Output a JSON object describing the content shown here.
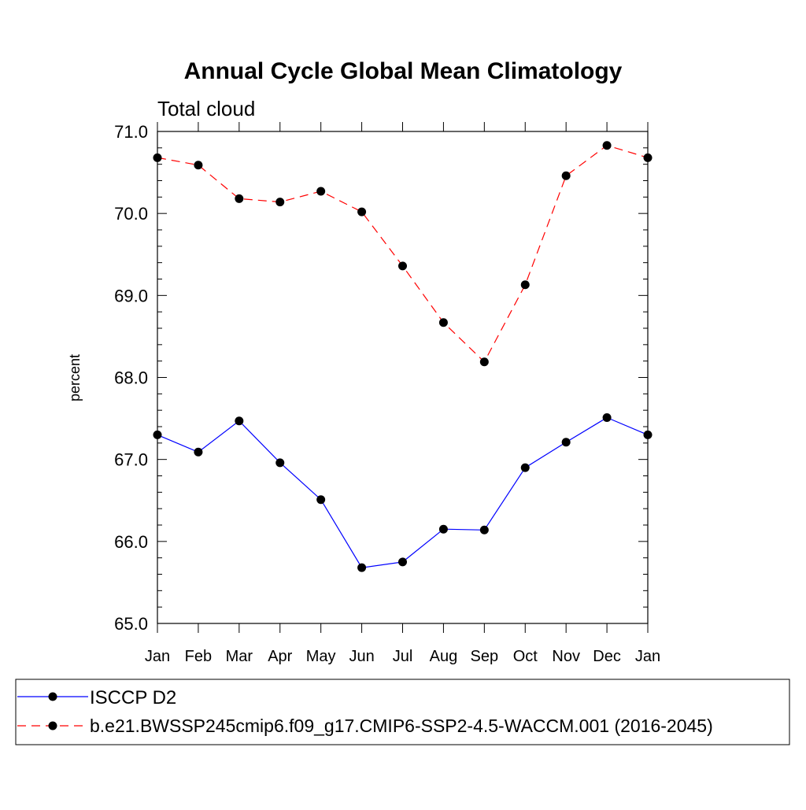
{
  "chart_data": {
    "type": "line",
    "title": "Annual Cycle Global Mean Climatology",
    "subtitle": "Total cloud",
    "xlabel": "",
    "ylabel": "percent",
    "categories": [
      "Jan",
      "Feb",
      "Mar",
      "Apr",
      "May",
      "Jun",
      "Jul",
      "Aug",
      "Sep",
      "Oct",
      "Nov",
      "Dec",
      "Jan"
    ],
    "ylim": [
      65.0,
      71.0
    ],
    "yticks": [
      65.0,
      66.0,
      67.0,
      68.0,
      69.0,
      70.0,
      71.0
    ],
    "ytick_labels": [
      "65.0",
      "66.0",
      "67.0",
      "68.0",
      "69.0",
      "70.0",
      "71.0"
    ],
    "grid": false,
    "legend_position": "bottom",
    "series": [
      {
        "name": "ISCCP D2",
        "color": "#0000ff",
        "line_style": "solid",
        "marker": "filled-circle",
        "values": [
          67.3,
          67.09,
          67.47,
          66.96,
          66.51,
          65.68,
          65.75,
          66.15,
          66.14,
          66.9,
          67.21,
          67.51,
          67.3
        ]
      },
      {
        "name": "b.e21.BWSSP245cmip6.f09_g17.CMIP6-SSP2-4.5-WACCM.001 (2016-2045)",
        "color": "#ff0000",
        "line_style": "dashed",
        "marker": "filled-circle",
        "values": [
          70.68,
          70.59,
          70.18,
          70.14,
          70.27,
          70.02,
          69.36,
          68.67,
          68.19,
          69.13,
          70.46,
          70.83,
          70.68
        ]
      }
    ]
  }
}
